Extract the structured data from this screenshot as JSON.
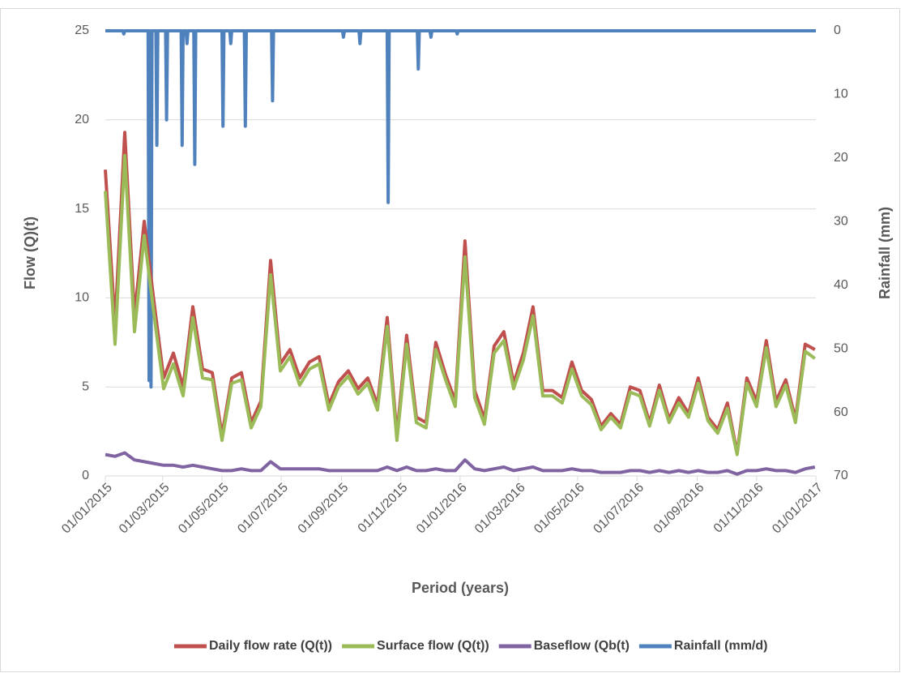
{
  "chart_data": {
    "type": "line",
    "x_label": "Period (years)",
    "y_label": "Flow (Q)(t)",
    "y2_label": "Rainfall (mm)",
    "x": [
      "01/01/2015",
      "11/01/2015",
      "21/01/2015",
      "31/01/2015",
      "10/02/2015",
      "20/02/2015",
      "02/03/2015",
      "12/03/2015",
      "22/03/2015",
      "01/04/2015",
      "11/04/2015",
      "21/04/2015",
      "01/05/2015",
      "11/05/2015",
      "21/05/2015",
      "31/05/2015",
      "10/06/2015",
      "20/06/2015",
      "30/06/2015",
      "10/07/2015",
      "20/07/2015",
      "30/07/2015",
      "09/08/2015",
      "19/08/2015",
      "29/08/2015",
      "08/09/2015",
      "18/09/2015",
      "28/09/2015",
      "08/10/2015",
      "18/10/2015",
      "28/10/2015",
      "07/11/2015",
      "17/11/2015",
      "27/11/2015",
      "07/12/2015",
      "17/12/2015",
      "27/12/2015",
      "06/01/2016",
      "16/01/2016",
      "26/01/2016",
      "05/02/2016",
      "15/02/2016",
      "25/02/2016",
      "06/03/2016",
      "16/03/2016",
      "26/03/2016",
      "05/04/2016",
      "15/04/2016",
      "25/04/2016",
      "05/05/2016",
      "15/05/2016",
      "25/05/2016",
      "04/06/2016",
      "14/06/2016",
      "24/06/2016",
      "04/07/2016",
      "14/07/2016",
      "24/07/2016",
      "03/08/2016",
      "13/08/2016",
      "23/08/2016",
      "02/09/2016",
      "12/09/2016",
      "22/09/2016",
      "02/10/2016",
      "12/10/2016",
      "22/10/2016",
      "01/11/2016",
      "11/11/2016",
      "21/11/2016",
      "01/12/2016",
      "11/12/2016",
      "21/12/2016",
      "31/12/2016"
    ],
    "series": [
      {
        "name": "Daily flow rate (Q(t))",
        "color": "#c0504d",
        "values": [
          17.2,
          8.5,
          19.3,
          9,
          14.3,
          9.8,
          5.5,
          6.9,
          5,
          9.5,
          6,
          5.8,
          2.3,
          5.5,
          5.8,
          3,
          4.2,
          12.1,
          6.3,
          7.1,
          5.5,
          6.4,
          6.7,
          4,
          5.3,
          5.9,
          4.9,
          5.5,
          4,
          8.9,
          2.3,
          7.9,
          3.3,
          3,
          7.5,
          5.7,
          4.2,
          13.2,
          4.8,
          3.2,
          7.3,
          8.1,
          5.2,
          6.9,
          9.5,
          4.8,
          4.8,
          4.4,
          6.4,
          4.8,
          4.3,
          2.8,
          3.5,
          2.9,
          5,
          4.8,
          3,
          5.1,
          3.2,
          4.4,
          3.5,
          5.5,
          3.3,
          2.6,
          4.1,
          1.3,
          5.5,
          4.2,
          7.6,
          4.2,
          5.4,
          3.2,
          7.4,
          7.1
        ]
      },
      {
        "name": "Surface flow (Q(t))",
        "color": "#9bbb59",
        "values": [
          16.0,
          7.4,
          18.0,
          8.1,
          13.5,
          9.1,
          4.9,
          6.3,
          4.5,
          8.9,
          5.5,
          5.4,
          2.0,
          5.2,
          5.4,
          2.7,
          3.9,
          11.3,
          5.9,
          6.7,
          5.1,
          6.0,
          6.3,
          3.7,
          5.0,
          5.6,
          4.6,
          5.2,
          3.7,
          8.4,
          2.0,
          7.4,
          3.0,
          2.7,
          7.1,
          5.4,
          3.9,
          12.3,
          4.4,
          2.9,
          6.9,
          7.6,
          4.9,
          6.5,
          9.0,
          4.5,
          4.5,
          4.1,
          6.0,
          4.5,
          4.0,
          2.6,
          3.3,
          2.7,
          4.7,
          4.5,
          2.8,
          4.8,
          3.0,
          4.1,
          3.3,
          5.2,
          3.1,
          2.4,
          3.8,
          1.2,
          5.2,
          3.9,
          7.2,
          3.9,
          5.1,
          3.0,
          7.0,
          6.6
        ]
      },
      {
        "name": "Baseflow (Qb(t)",
        "color": "#8064a2",
        "values": [
          1.2,
          1.1,
          1.3,
          0.9,
          0.8,
          0.7,
          0.6,
          0.6,
          0.5,
          0.6,
          0.5,
          0.4,
          0.3,
          0.3,
          0.4,
          0.3,
          0.3,
          0.8,
          0.4,
          0.4,
          0.4,
          0.4,
          0.4,
          0.3,
          0.3,
          0.3,
          0.3,
          0.3,
          0.3,
          0.5,
          0.3,
          0.5,
          0.3,
          0.3,
          0.4,
          0.3,
          0.3,
          0.9,
          0.4,
          0.3,
          0.4,
          0.5,
          0.3,
          0.4,
          0.5,
          0.3,
          0.3,
          0.3,
          0.4,
          0.3,
          0.3,
          0.2,
          0.2,
          0.2,
          0.3,
          0.3,
          0.2,
          0.3,
          0.2,
          0.3,
          0.2,
          0.3,
          0.2,
          0.2,
          0.3,
          0.1,
          0.3,
          0.3,
          0.4,
          0.3,
          0.3,
          0.2,
          0.4,
          0.5
        ]
      },
      {
        "name": "Rainfall (mm/d)",
        "color": "#4f81bd",
        "axis": "y2",
        "x": [
          "01/01/2015",
          "19/01/2015",
          "20/01/2015",
          "21/01/2015",
          "14/02/2015",
          "15/02/2015",
          "16/02/2015",
          "17/02/2015",
          "18/02/2015",
          "22/02/2015",
          "23/02/2015",
          "24/02/2015",
          "04/03/2015",
          "05/03/2015",
          "06/03/2015",
          "20/03/2015",
          "21/03/2015",
          "22/03/2015",
          "25/03/2015",
          "26/03/2015",
          "27/03/2015",
          "02/04/2015",
          "03/04/2015",
          "04/04/2015",
          "01/05/2015",
          "02/05/2015",
          "03/05/2015",
          "09/05/2015",
          "10/05/2015",
          "11/05/2015",
          "24/05/2015",
          "25/05/2015",
          "26/05/2015",
          "21/06/2015",
          "22/06/2015",
          "23/06/2015",
          "02/09/2015",
          "03/09/2015",
          "04/09/2015",
          "19/09/2015",
          "20/09/2015",
          "21/09/2015",
          "18/10/2015",
          "19/10/2015",
          "20/10/2015",
          "18/11/2015",
          "19/11/2015",
          "20/11/2015",
          "01/12/2015",
          "02/12/2015",
          "03/12/2015",
          "28/12/2015",
          "29/12/2015",
          "30/12/2015",
          "01/01/2017"
        ],
        "values": [
          0,
          0,
          0.5,
          0,
          0,
          55,
          0,
          56,
          0,
          0,
          18,
          0,
          0,
          14,
          0,
          0,
          18,
          0,
          0,
          2,
          0,
          0,
          21,
          0,
          0,
          15,
          0,
          0,
          2,
          0,
          0,
          15,
          0,
          0,
          11,
          0,
          0,
          1,
          0,
          0,
          2,
          0,
          0,
          27,
          0,
          0,
          6,
          0,
          0,
          1,
          0,
          0,
          0.5,
          0,
          0
        ]
      }
    ],
    "xlim": [
      "01/01/2015",
      "01/01/2017"
    ],
    "xticks": [
      "01/01/2015",
      "01/03/2015",
      "01/05/2015",
      "01/07/2015",
      "01/09/2015",
      "01/11/2015",
      "01/01/2016",
      "01/03/2016",
      "01/05/2016",
      "01/07/2016",
      "01/09/2016",
      "01/11/2016",
      "01/01/2017"
    ],
    "ylim": [
      0,
      25
    ],
    "yticks": [
      0,
      5,
      10,
      15,
      20,
      25
    ],
    "y2lim": [
      70,
      0
    ],
    "y2ticks": [
      0,
      10,
      20,
      30,
      40,
      50,
      60,
      70
    ],
    "grid": true,
    "legend": "bottom"
  }
}
